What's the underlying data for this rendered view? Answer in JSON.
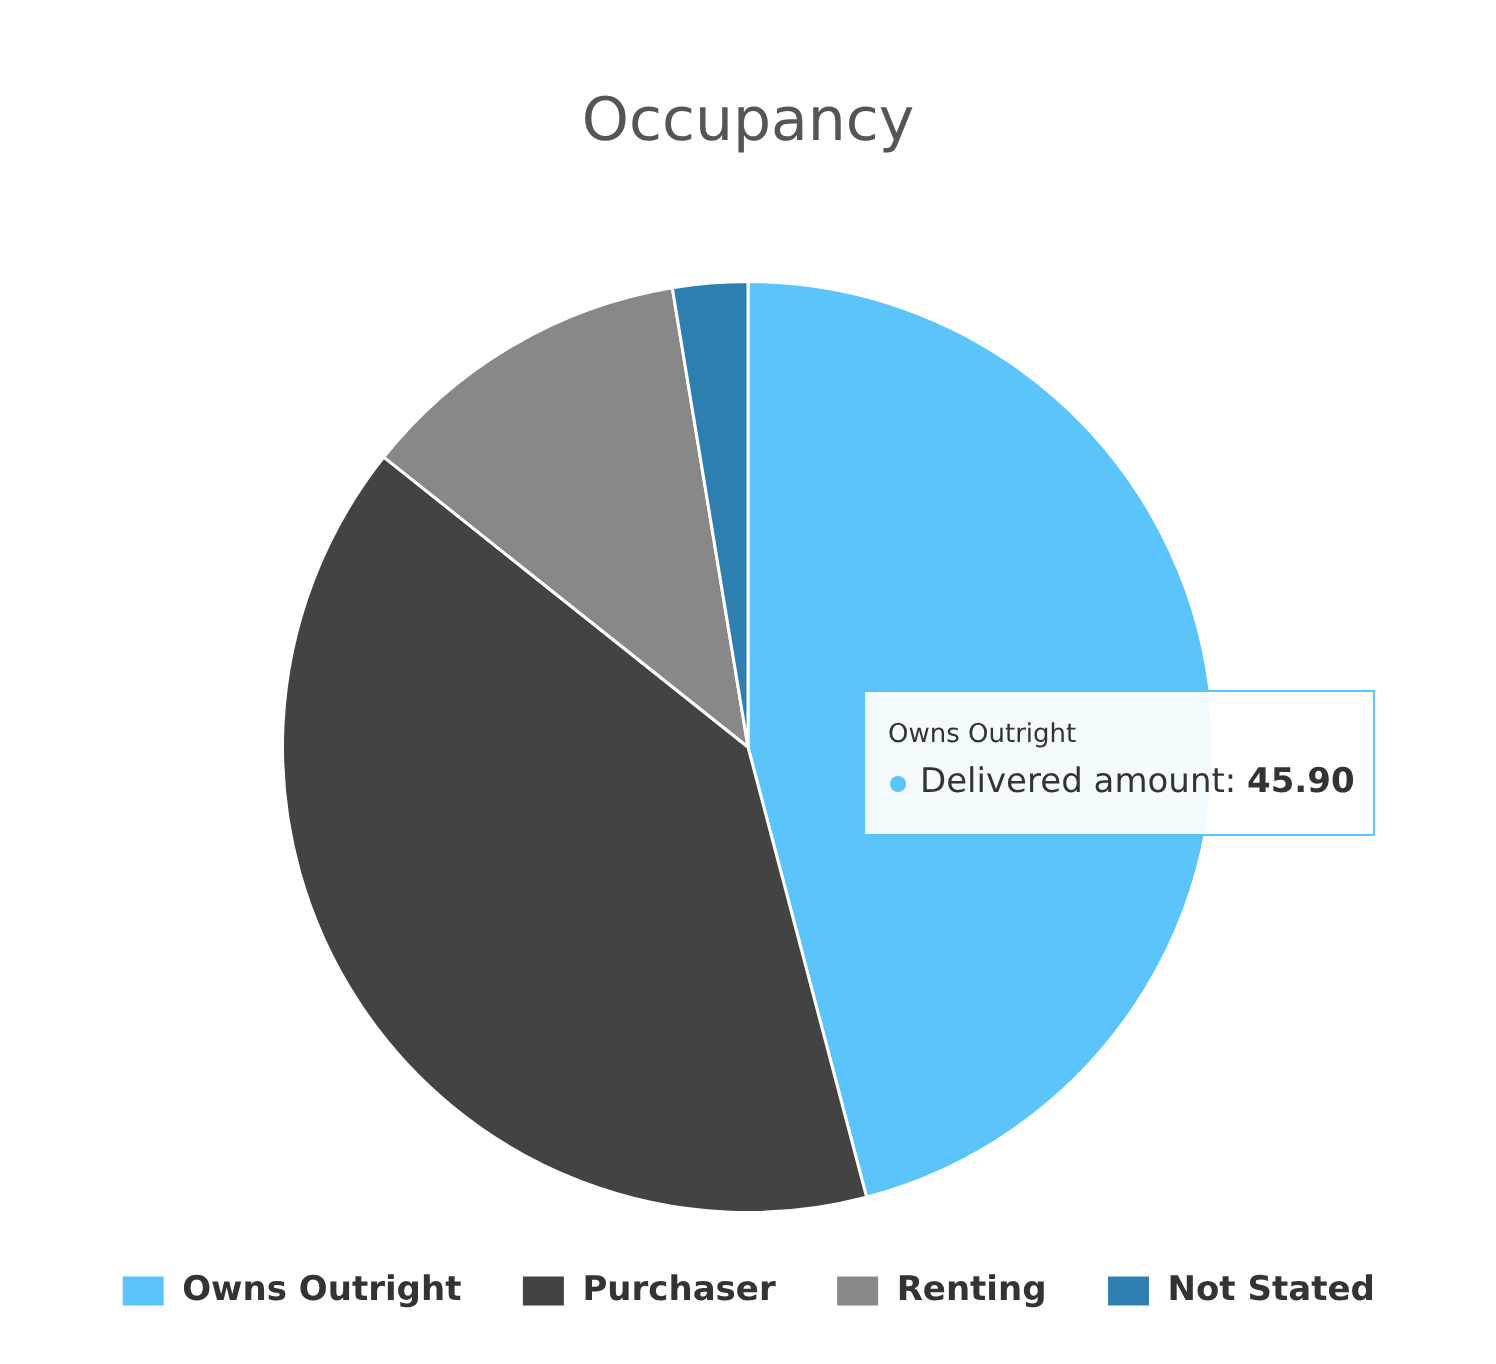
{
  "chart_data": {
    "type": "pie",
    "title": "Occupancy",
    "categories": [
      "Owns Outright",
      "Purchaser",
      "Renting",
      "Not Stated"
    ],
    "values": [
      45.9,
      39.8,
      11.7,
      2.6
    ],
    "colors": [
      "#5bc4fb",
      "#434343",
      "#888888",
      "#2e7fb0"
    ],
    "legend": "bottom",
    "annotations": [
      "Owns Outright",
      "Delivered amount: 45.90"
    ]
  }
}
